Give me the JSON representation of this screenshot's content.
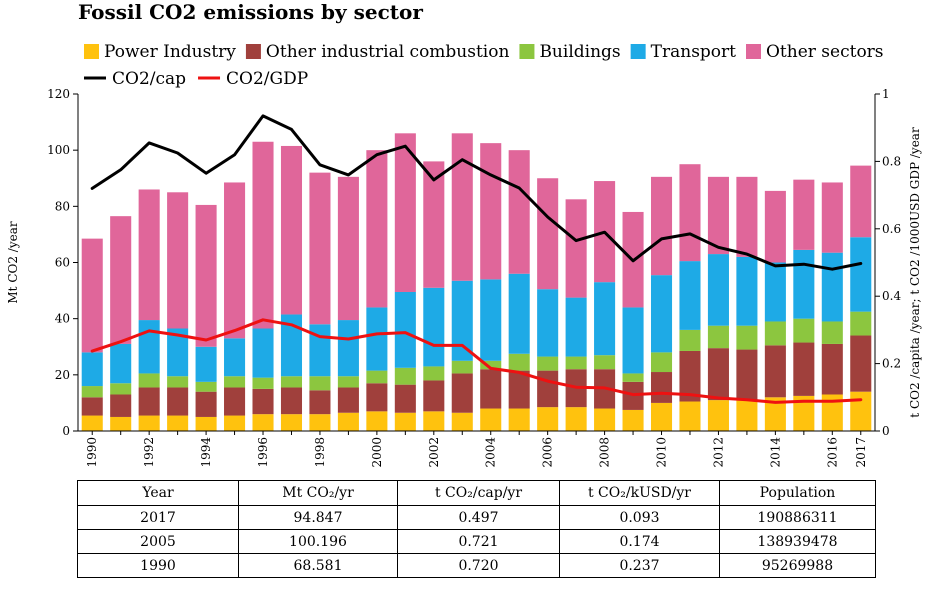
{
  "title": "Fossil CO2 emissions by sector",
  "chart_data": {
    "type": "bar",
    "stacked": true,
    "title": "Fossil CO2 emissions by sector",
    "xlabel": "",
    "ylabel": "Mt CO2 /year",
    "y2label": "t CO2 /capita /year; t CO2 /1000USD GDP /year",
    "ylim": [
      0,
      120
    ],
    "y2lim": [
      0,
      1
    ],
    "yticks": [
      "0",
      "20",
      "40",
      "60",
      "80",
      "100",
      "120"
    ],
    "y2ticks": [
      "0",
      "0.2",
      "0.4",
      "0.6",
      "0.8",
      "1"
    ],
    "xtick_labels": [
      "1990",
      "1992",
      "1994",
      "1996",
      "1998",
      "2000",
      "2002",
      "2004",
      "2006",
      "2008",
      "2010",
      "2012",
      "2014",
      "2016",
      "2017"
    ],
    "legend_position": "top",
    "grid": false,
    "categories": [
      "1990",
      "1991",
      "1992",
      "1993",
      "1994",
      "1995",
      "1996",
      "1997",
      "1998",
      "1999",
      "2000",
      "2001",
      "2002",
      "2003",
      "2004",
      "2005",
      "2006",
      "2007",
      "2008",
      "2009",
      "2010",
      "2011",
      "2012",
      "2013",
      "2014",
      "2015",
      "2016",
      "2017"
    ],
    "series": [
      {
        "name": "Power Industry",
        "color": "#FFC20E",
        "values": [
          5.5,
          5.0,
          5.5,
          5.5,
          5.0,
          5.5,
          6.0,
          6.0,
          6.0,
          6.5,
          7.0,
          6.5,
          7.0,
          6.5,
          8.0,
          8.0,
          8.5,
          8.5,
          8.0,
          7.5,
          10.0,
          10.5,
          11.0,
          11.0,
          12.0,
          12.5,
          13.0,
          14.0
        ]
      },
      {
        "name": "Other industrial combustion",
        "color": "#A0403C",
        "values": [
          6.5,
          8.0,
          10.0,
          10.0,
          9.0,
          10.0,
          9.0,
          9.5,
          8.5,
          9.0,
          10.0,
          10.0,
          11.0,
          14.0,
          14.0,
          13.5,
          13.0,
          13.5,
          14.0,
          10.0,
          11.0,
          18.0,
          18.5,
          18.0,
          18.5,
          19.0,
          18.0,
          20.0
        ]
      },
      {
        "name": "Buildings",
        "color": "#8CC63F",
        "values": [
          4.0,
          4.0,
          5.0,
          4.0,
          3.5,
          4.0,
          4.0,
          4.0,
          5.0,
          4.0,
          4.5,
          6.0,
          5.0,
          4.5,
          3.0,
          6.0,
          5.0,
          4.5,
          5.0,
          3.0,
          7.0,
          7.5,
          8.0,
          8.5,
          8.5,
          8.5,
          8.0,
          8.5
        ]
      },
      {
        "name": "Transport",
        "color": "#1EAAE6",
        "values": [
          12.0,
          14.0,
          19.0,
          17.0,
          12.5,
          13.5,
          17.5,
          22.0,
          18.5,
          20.0,
          22.5,
          27.0,
          28.0,
          28.5,
          29.0,
          28.5,
          24.0,
          21.0,
          26.0,
          23.5,
          27.5,
          24.5,
          25.5,
          24.5,
          21.0,
          24.5,
          24.5,
          26.5
        ]
      },
      {
        "name": "Other sectors",
        "color": "#E0669A",
        "values": [
          40.5,
          45.5,
          46.5,
          48.5,
          50.5,
          55.5,
          66.5,
          60.0,
          54.0,
          51.0,
          56.0,
          56.5,
          45.0,
          52.5,
          48.5,
          44.0,
          39.5,
          35.0,
          36.0,
          34.0,
          35.0,
          34.5,
          27.5,
          28.5,
          25.5,
          25.0,
          25.0,
          25.5
        ]
      }
    ],
    "lines": [
      {
        "name": "CO2/cap",
        "color": "#000000",
        "axis": "right",
        "values": [
          0.72,
          0.775,
          0.855,
          0.825,
          0.765,
          0.82,
          0.935,
          0.895,
          0.79,
          0.76,
          0.82,
          0.845,
          0.745,
          0.805,
          0.76,
          0.721,
          0.635,
          0.565,
          0.59,
          0.505,
          0.57,
          0.585,
          0.545,
          0.525,
          0.49,
          0.495,
          0.48,
          0.497
        ]
      },
      {
        "name": "CO2/GDP",
        "color": "#EE1111",
        "axis": "right",
        "values": [
          0.237,
          0.265,
          0.297,
          0.285,
          0.27,
          0.298,
          0.33,
          0.315,
          0.28,
          0.273,
          0.288,
          0.292,
          0.254,
          0.254,
          0.186,
          0.174,
          0.148,
          0.13,
          0.128,
          0.108,
          0.112,
          0.108,
          0.098,
          0.093,
          0.085,
          0.088,
          0.088,
          0.093
        ]
      }
    ]
  },
  "table": {
    "headers": [
      "Year",
      "Mt CO₂/yr",
      "t CO₂/cap/yr",
      "t CO₂/kUSD/yr",
      "Population"
    ],
    "rows": [
      [
        "2017",
        "94.847",
        "0.497",
        "0.093",
        "190886311"
      ],
      [
        "2005",
        "100.196",
        "0.721",
        "0.174",
        "138939478"
      ],
      [
        "1990",
        "68.581",
        "0.720",
        "0.237",
        "95269988"
      ]
    ]
  }
}
